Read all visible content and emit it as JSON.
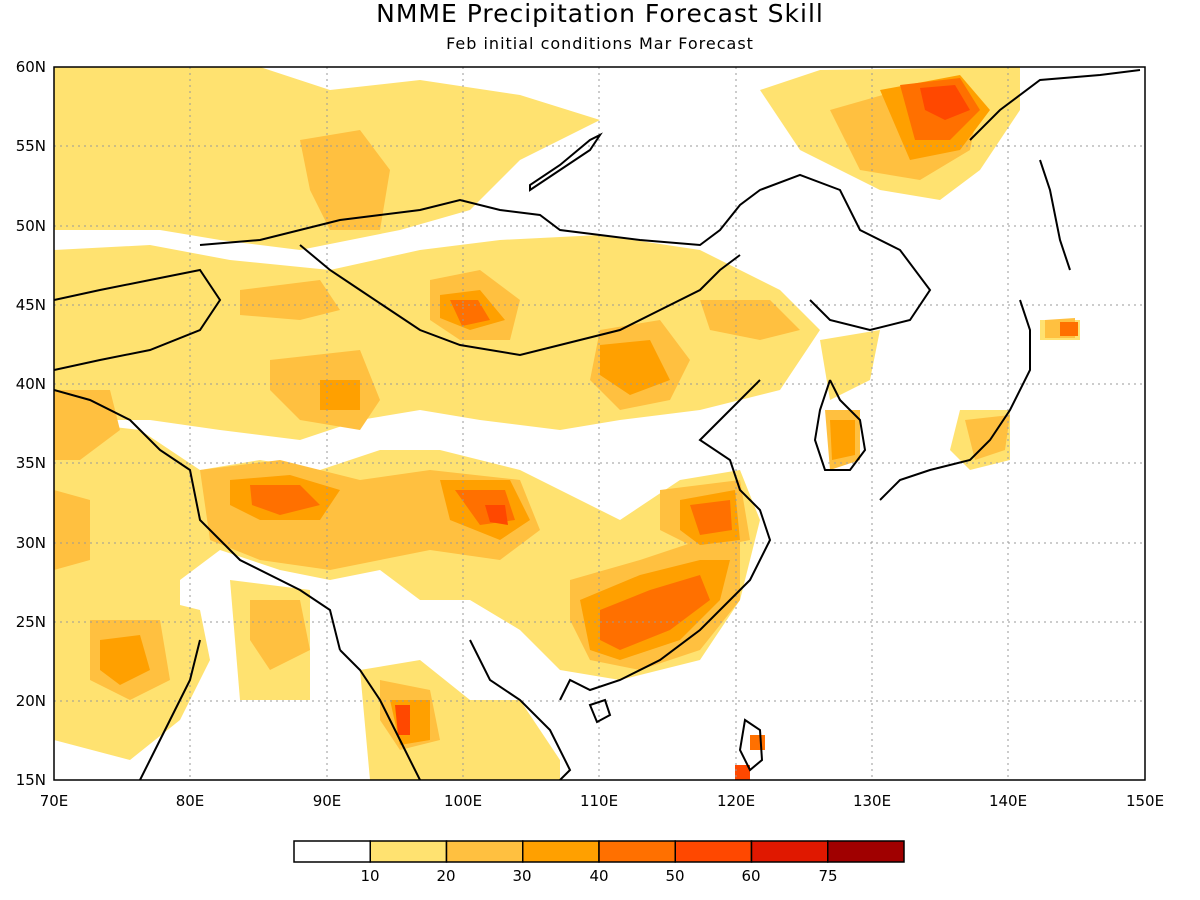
{
  "title": "NMME Precipitation Forecast Skill",
  "subtitle": "Feb initial conditions  Mar Forecast",
  "map": {
    "lon_range": [
      70,
      150
    ],
    "lat_range": [
      15,
      60
    ],
    "lon_ticks": [
      "70E",
      "80E",
      "90E",
      "100E",
      "110E",
      "120E",
      "130E",
      "140E",
      "150E"
    ],
    "lat_ticks": [
      "60N",
      "55N",
      "50N",
      "45N",
      "40N",
      "35N",
      "30N",
      "25N",
      "20N",
      "15N"
    ],
    "grid": "dotted"
  },
  "colorbar": {
    "colors": [
      "#ffffff",
      "#ffe270",
      "#ffc040",
      "#ffa000",
      "#ff7000",
      "#ff4800",
      "#e01800",
      "#a00000"
    ],
    "labels": [
      "10",
      "20",
      "30",
      "40",
      "50",
      "60",
      "75"
    ]
  }
}
